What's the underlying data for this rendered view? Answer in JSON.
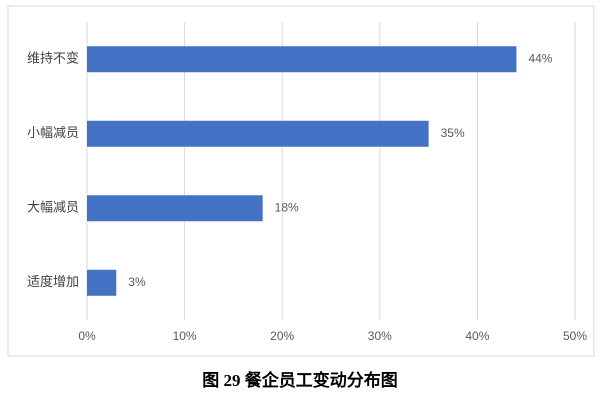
{
  "chart_data": {
    "type": "barh",
    "title": "图 29 餐企员工变动分布图",
    "categories": [
      "维持不变",
      "小幅减员",
      "大幅减员",
      "适度增加"
    ],
    "values": [
      44,
      35,
      18,
      3
    ],
    "value_labels": [
      "44%",
      "35%",
      "18%",
      "3%"
    ],
    "color": "#4472c4",
    "xlim": [
      0,
      50
    ],
    "xticks": [
      {
        "value": 0,
        "label": "0%"
      },
      {
        "value": 10,
        "label": "10%"
      },
      {
        "value": 20,
        "label": "20%"
      },
      {
        "value": 30,
        "label": "30%"
      },
      {
        "value": 40,
        "label": "40%"
      },
      {
        "value": 50,
        "label": "50%"
      }
    ],
    "grid": true
  }
}
